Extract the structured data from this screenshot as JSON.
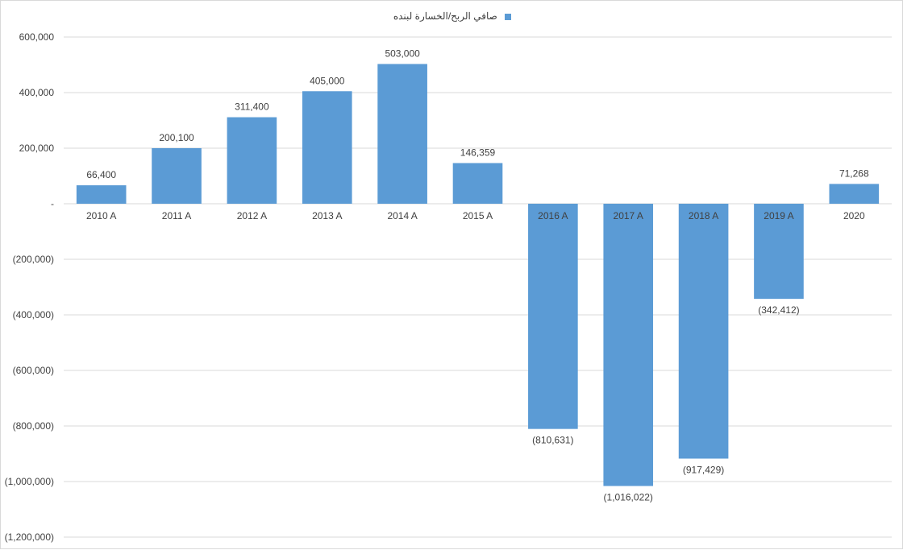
{
  "chart_data": {
    "type": "bar",
    "title": "",
    "xlabel": "",
    "ylabel": "",
    "categories": [
      "2010 A",
      "2011 A",
      "2012 A",
      "2013 A",
      "2014 A",
      "2015 A",
      "2016 A",
      "2017 A",
      "2018 A",
      "2019 A",
      "2020"
    ],
    "series": [
      {
        "name": "صافي الربح/الخسارة لبنده",
        "values": [
          66400,
          200100,
          311400,
          405000,
          503000,
          146359,
          -810631,
          -1016022,
          -917429,
          -342412,
          71268
        ],
        "labels": [
          "66,400",
          "200,100",
          "311,400",
          "405,000",
          "503,000",
          "146,359",
          "(810,631)",
          "(1,016,022)",
          "(917,429)",
          "(342,412)",
          "71,268"
        ],
        "color": "#5b9bd5"
      }
    ],
    "ylim": [
      -1200000,
      600000
    ],
    "yticks": [
      600000,
      400000,
      200000,
      0,
      -200000,
      -400000,
      -600000,
      -800000,
      -1000000,
      -1200000
    ],
    "ytick_labels": [
      "600,000",
      "400,000",
      "200,000",
      "-",
      "(200,000)",
      "(400,000)",
      "(600,000)",
      "(800,000)",
      "(1,000,000)",
      "(1,200,000)"
    ],
    "grid": true,
    "legend_position": "top-center"
  }
}
